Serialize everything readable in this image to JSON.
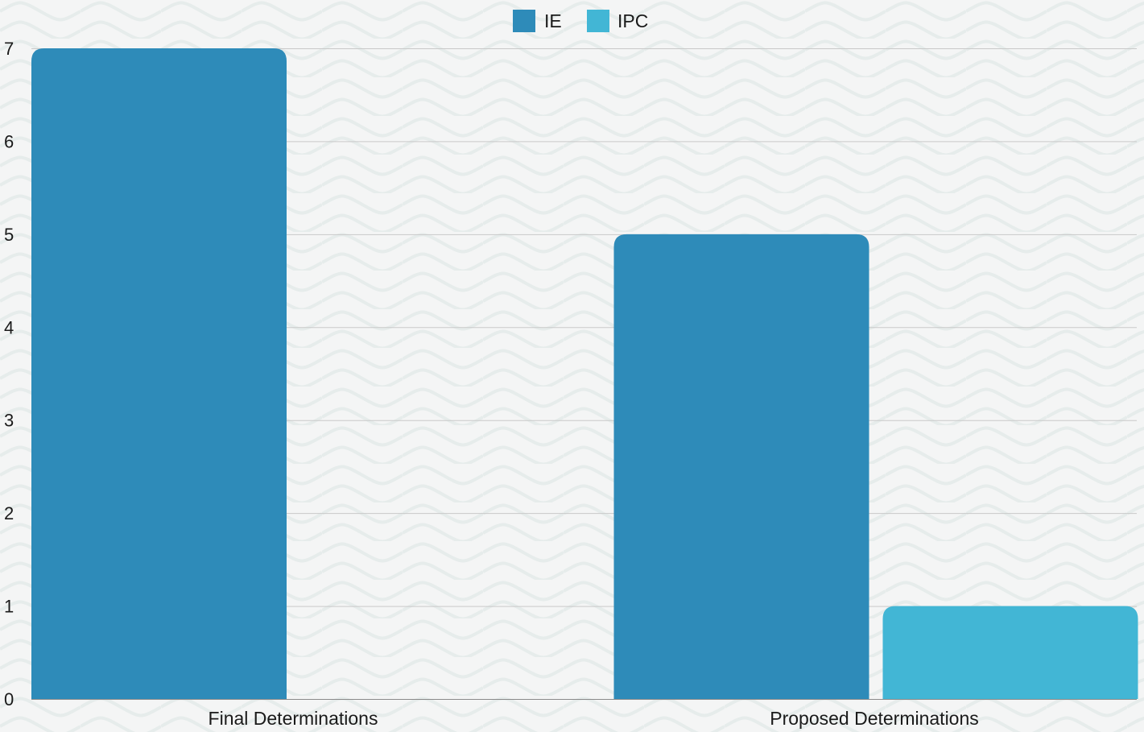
{
  "chart_data": {
    "type": "bar",
    "title": "",
    "xlabel": "",
    "ylabel": "",
    "categories": [
      "Final Determinations",
      "Proposed Determinations"
    ],
    "series": [
      {
        "name": "IE",
        "values": [
          7,
          5
        ],
        "color": "#2e8bb9"
      },
      {
        "name": "IPC",
        "values": [
          0,
          1
        ],
        "color": "#42b6d5"
      }
    ],
    "ylim": [
      0,
      7
    ],
    "yticks": [
      "0",
      "1",
      "2",
      "3",
      "4",
      "5",
      "6",
      "7"
    ],
    "grid": true,
    "legend_position": "top-center",
    "background": "#f4f5f5",
    "background_pattern": "wave"
  }
}
